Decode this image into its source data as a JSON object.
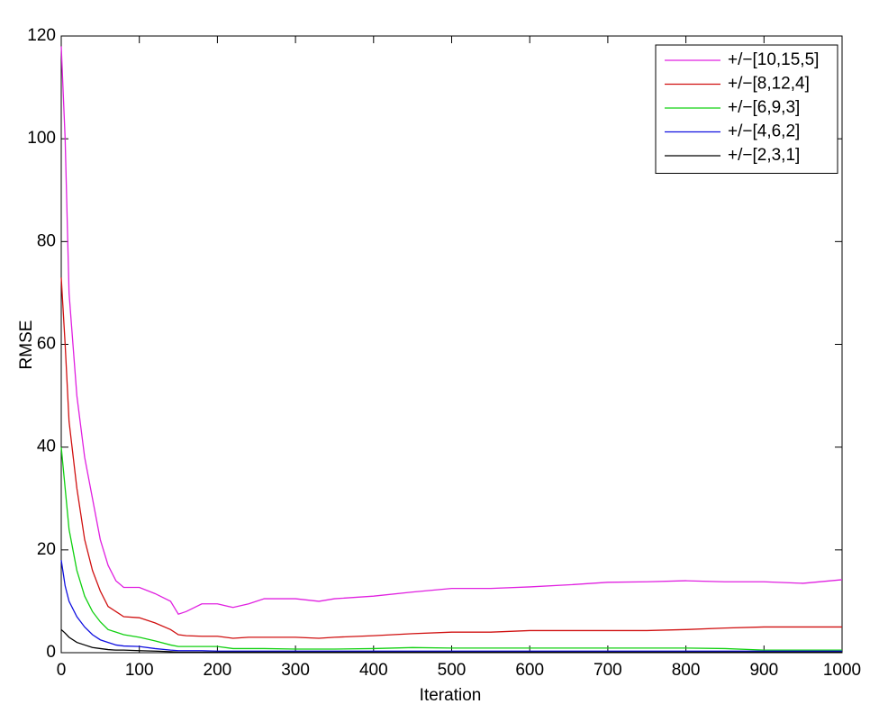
{
  "chart_data": {
    "type": "line",
    "xlabel": "Iteration",
    "ylabel": "RMSE",
    "x": [
      0,
      5,
      10,
      20,
      30,
      40,
      50,
      60,
      70,
      80,
      100,
      120,
      140,
      150,
      160,
      180,
      200,
      220,
      240,
      260,
      300,
      330,
      350,
      400,
      450,
      500,
      550,
      600,
      650,
      700,
      750,
      800,
      850,
      900,
      950,
      1000
    ],
    "series": [
      {
        "name": "+/−[10,15,5]",
        "color": "#e020e0",
        "values": [
          118,
          100,
          70,
          50,
          38,
          30,
          22,
          17,
          14,
          12.7,
          12.7,
          11.5,
          10,
          7.5,
          8,
          9.5,
          9.5,
          8.8,
          9.5,
          10.5,
          10.5,
          10,
          10.5,
          11,
          11.8,
          12.5,
          12.5,
          12.8,
          13.2,
          13.7,
          13.8,
          14,
          13.8,
          13.8,
          13.5,
          14.2
        ]
      },
      {
        "name": "+/−[8,12,4]",
        "color": "#d01010",
        "values": [
          73,
          60,
          45,
          32,
          22,
          16,
          12,
          9,
          8,
          7,
          6.8,
          5.8,
          4.5,
          3.5,
          3.3,
          3.2,
          3.2,
          2.8,
          3,
          3,
          3,
          2.8,
          3,
          3.3,
          3.7,
          4,
          4,
          4.3,
          4.3,
          4.3,
          4.3,
          4.5,
          4.8,
          5,
          5,
          5
        ]
      },
      {
        "name": "+/−[6,9,3]",
        "color": "#10d010",
        "values": [
          40,
          32,
          24,
          16,
          11,
          8,
          6,
          4.5,
          4,
          3.5,
          3,
          2.3,
          1.5,
          1.2,
          1.2,
          1.2,
          1.2,
          0.8,
          0.8,
          0.8,
          0.7,
          0.7,
          0.7,
          0.8,
          1,
          0.9,
          0.9,
          0.9,
          0.9,
          0.9,
          0.9,
          0.9,
          0.8,
          0.5,
          0.5,
          0.5
        ]
      },
      {
        "name": "+/−[4,6,2]",
        "color": "#1010e0",
        "values": [
          18,
          13,
          10,
          7,
          5,
          3.5,
          2.5,
          2,
          1.5,
          1.3,
          1.2,
          0.8,
          0.5,
          0.4,
          0.4,
          0.4,
          0.3,
          0.3,
          0.3,
          0.3,
          0.3,
          0.3,
          0.3,
          0.3,
          0.3,
          0.3,
          0.3,
          0.3,
          0.3,
          0.3,
          0.3,
          0.3,
          0.3,
          0.3,
          0.3,
          0.3
        ]
      },
      {
        "name": "+/−[2,3,1]",
        "color": "#000000",
        "values": [
          4.5,
          3.8,
          3,
          2,
          1.5,
          1,
          0.8,
          0.6,
          0.5,
          0.5,
          0.4,
          0.3,
          0.2,
          0.1,
          0.1,
          0.1,
          0.1,
          0.1,
          0.1,
          0.1,
          0.1,
          0.1,
          0.1,
          0.1,
          0.1,
          0.1,
          0.1,
          0.1,
          0.1,
          0.1,
          0.1,
          0.1,
          0.1,
          0.1,
          0.1,
          0.1
        ]
      }
    ],
    "xlim": [
      0,
      1000
    ],
    "xticks": [
      0,
      100,
      200,
      300,
      400,
      500,
      600,
      700,
      800,
      900,
      1000
    ],
    "ylim": [
      0,
      120
    ],
    "yticks": [
      0,
      20,
      40,
      60,
      80,
      100,
      120
    ],
    "grid": false,
    "legend": "northeast"
  }
}
